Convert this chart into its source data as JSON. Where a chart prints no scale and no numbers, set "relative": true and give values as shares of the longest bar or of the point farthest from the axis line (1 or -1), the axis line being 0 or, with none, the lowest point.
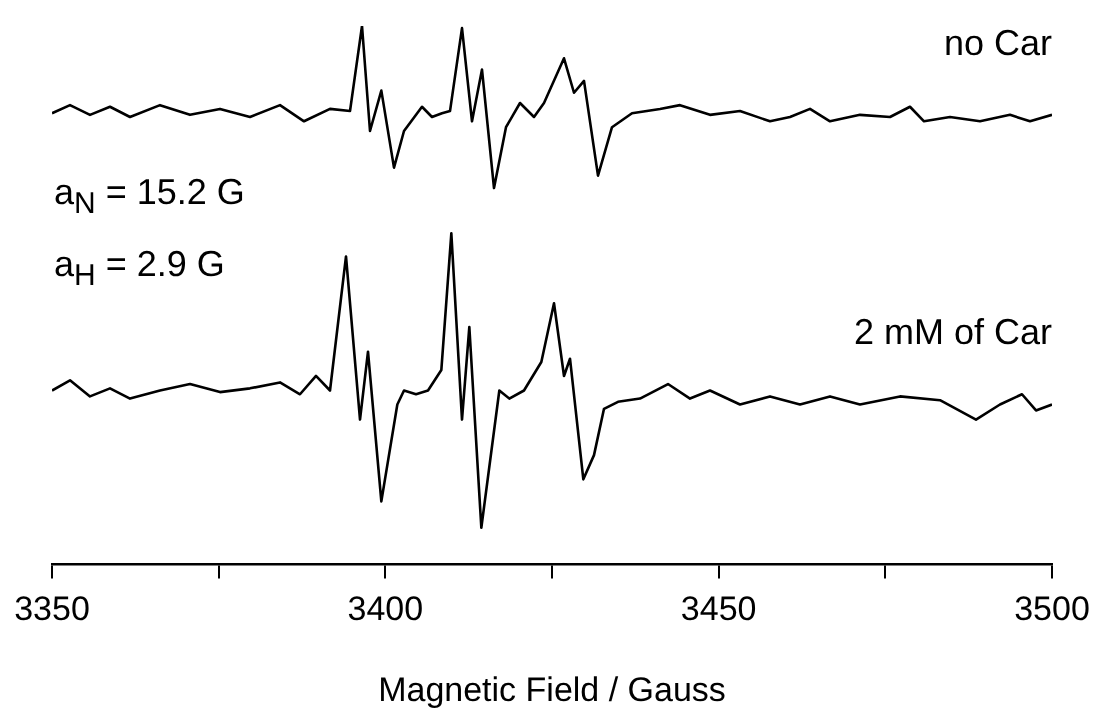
{
  "chart_data": {
    "type": "line",
    "relative": true,
    "xlabel": "Magnetic Field / Gauss",
    "xlim": [
      3350,
      3500
    ],
    "xticks": [
      3350,
      {
        "value": 3375,
        "label": null
      },
      3400,
      {
        "value": 3425,
        "label": null
      },
      3450,
      {
        "value": 3475,
        "label": null
      },
      3500
    ],
    "marker": "none",
    "line_style": "solid",
    "annotations": [
      "a$_{N}$ = 15.2 G",
      "a$_{H}$ = 2.9 G"
    ],
    "series": [
      {
        "name": "no Car",
        "color": "#000000",
        "x": [
          3350,
          3352.7,
          3355.7,
          3358.7,
          3361.7,
          3366.2,
          3370.7,
          3375.2,
          3379.7,
          3384.2,
          3387.8,
          3391.7,
          3394.7,
          3396.5,
          3397.7,
          3399.4,
          3401.3,
          3402.8,
          3405.5,
          3407.0,
          3408.5,
          3409.7,
          3411.5,
          3413.0,
          3414.5,
          3416.3,
          3418.1,
          3420.2,
          3422.3,
          3423.8,
          3426.8,
          3428.3,
          3429.8,
          3431.9,
          3434.0,
          3437.0,
          3441.2,
          3444.2,
          3448.7,
          3453.2,
          3457.7,
          3460.7,
          3463.7,
          3466.7,
          3471.2,
          3475.7,
          3478.7,
          3480.8,
          3484.7,
          3489.2,
          3493.7,
          3496.7,
          3500
        ],
        "values": [
          0.838,
          0.853,
          0.835,
          0.85,
          0.831,
          0.853,
          0.835,
          0.846,
          0.831,
          0.853,
          0.823,
          0.846,
          0.842,
          1,
          0.805,
          0.88,
          0.737,
          0.805,
          0.85,
          0.831,
          0.838,
          0.842,
          0.996,
          0.823,
          0.919,
          0.699,
          0.812,
          0.857,
          0.831,
          0.857,
          0.94,
          0.876,
          0.898,
          0.722,
          0.812,
          0.838,
          0.846,
          0.853,
          0.835,
          0.842,
          0.823,
          0.831,
          0.846,
          0.823,
          0.835,
          0.831,
          0.85,
          0.823,
          0.831,
          0.823,
          0.835,
          0.823,
          0.835
        ]
      },
      {
        "name": "2 mM of Car",
        "color": "#000000",
        "x": [
          3350,
          3352.7,
          3355.7,
          3358.7,
          3361.7,
          3366.2,
          3370.7,
          3375.2,
          3379.7,
          3384.2,
          3387.2,
          3389.6,
          3391.7,
          3394.1,
          3396.2,
          3397.4,
          3399.4,
          3401.8,
          3402.8,
          3404.6,
          3406.4,
          3408.4,
          3409.9,
          3411.5,
          3412.6,
          3414.4,
          3417.1,
          3418.6,
          3420.8,
          3423.4,
          3425.3,
          3426.8,
          3427.7,
          3429.7,
          3431.3,
          3432.8,
          3434.9,
          3438.2,
          3442.4,
          3445.7,
          3448.7,
          3453.2,
          3457.7,
          3462.2,
          3466.7,
          3471.2,
          3477.2,
          3483.2,
          3488.6,
          3492.2,
          3495.5,
          3497.6,
          3500
        ],
        "values": [
          0.323,
          0.342,
          0.312,
          0.327,
          0.308,
          0.323,
          0.335,
          0.32,
          0.327,
          0.338,
          0.316,
          0.35,
          0.323,
          0.572,
          0.269,
          0.395,
          0.117,
          0.297,
          0.323,
          0.316,
          0.323,
          0.361,
          0.615,
          0.269,
          0.441,
          0.068,
          0.323,
          0.308,
          0.323,
          0.376,
          0.485,
          0.35,
          0.382,
          0.158,
          0.203,
          0.289,
          0.302,
          0.308,
          0.335,
          0.308,
          0.323,
          0.297,
          0.312,
          0.297,
          0.312,
          0.297,
          0.312,
          0.305,
          0.269,
          0.297,
          0.316,
          0.286,
          0.297
        ]
      }
    ]
  }
}
